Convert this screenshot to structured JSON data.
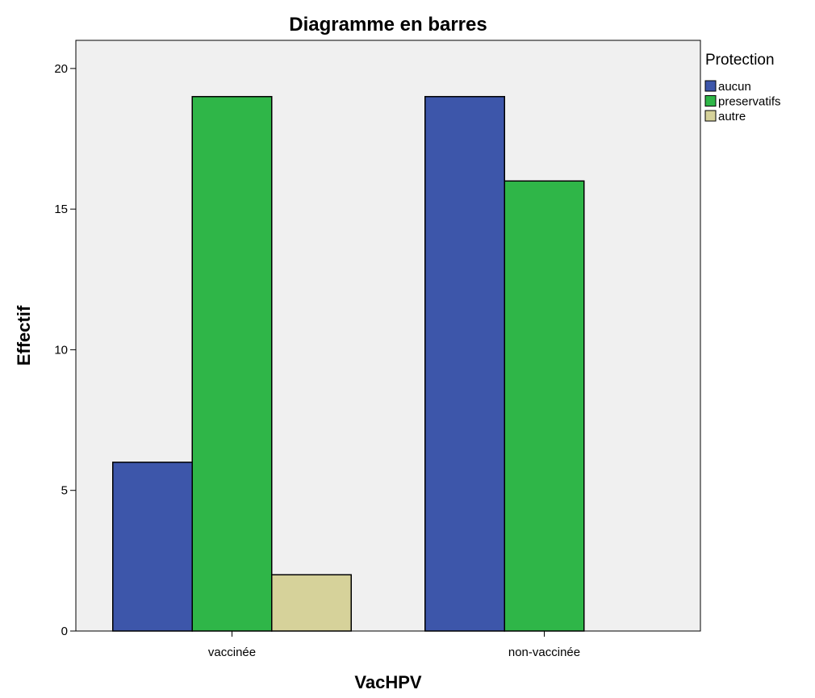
{
  "chart_data": {
    "type": "bar",
    "title": "Diagramme en barres",
    "xlabel": "VacHPV",
    "ylabel": "Effectif",
    "categories": [
      "vaccinée",
      "non-vaccinée"
    ],
    "series": [
      {
        "name": "aucun",
        "values": [
          6,
          19
        ],
        "color": "#3d56aa"
      },
      {
        "name": "preservatifs",
        "values": [
          19,
          16
        ],
        "color": "#2fb648"
      },
      {
        "name": "autre",
        "values": [
          2,
          0
        ],
        "color": "#d6d29a"
      }
    ],
    "ylim": [
      0,
      21
    ],
    "yticks": [
      0,
      5,
      10,
      15,
      20
    ],
    "ytick_labels": [
      "0",
      "5",
      "10",
      "15",
      "20"
    ],
    "legend": {
      "title": "Protection",
      "placement": "top-right outside plot"
    },
    "grid": false,
    "plot_background": "#f0f0f0",
    "bar_edge_color": "#000000"
  }
}
